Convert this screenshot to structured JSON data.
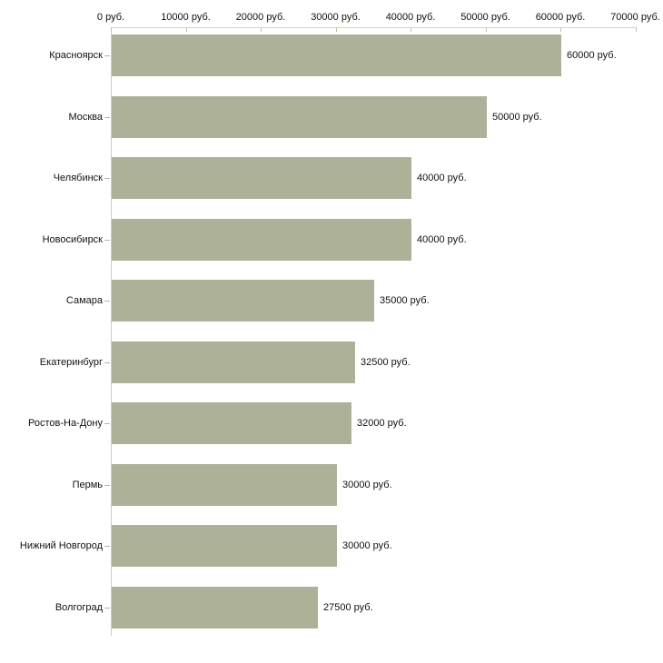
{
  "chart_data": {
    "type": "bar",
    "orientation": "horizontal",
    "title": "",
    "categories": [
      "Красноярск",
      "Москва",
      "Челябинск",
      "Новосибирск",
      "Самара",
      "Екатеринбург",
      "Ростов-На-Дону",
      "Пермь",
      "Нижний Новгород",
      "Волгоград"
    ],
    "values": [
      60000,
      50000,
      40000,
      40000,
      35000,
      32500,
      32000,
      30000,
      30000,
      27500
    ],
    "value_labels": [
      "60000 руб.",
      "50000 руб.",
      "40000 руб.",
      "40000 руб.",
      "35000 руб.",
      "32500 руб.",
      "32000 руб.",
      "30000 руб.",
      "30000 руб.",
      "27500 руб."
    ],
    "unit": "руб.",
    "x_axis": {
      "position": "top",
      "min": 0,
      "max": 70000,
      "tick_interval": 10000,
      "tick_labels": [
        "0 руб.",
        "10000 руб.",
        "20000 руб.",
        "30000 руб.",
        "40000 руб.",
        "50000 руб.",
        "60000 руб.",
        "70000 руб."
      ]
    },
    "ylabel": "",
    "xlabel": "",
    "grid": false,
    "legend": false,
    "colors": {
      "bar_fill": "#acb198",
      "x_axis_line": "#d6d3b8",
      "x_tick": "#c3c0a0",
      "y_axis_line": "#cccccc",
      "y_tick_dash": "#b3b3b3",
      "text": "#111111",
      "background": "#ffffff"
    }
  }
}
